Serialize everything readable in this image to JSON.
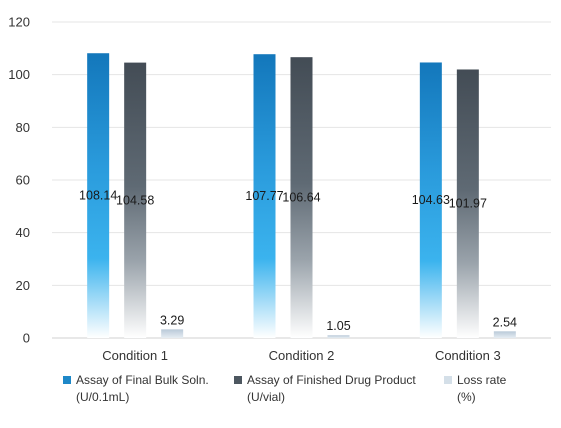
{
  "chart_data": {
    "type": "bar",
    "categories": [
      "Condition 1",
      "Condition 2",
      "Condition 3"
    ],
    "series": [
      {
        "name": "Assay of Final Bulk Soln. (U/0.1mL)",
        "legend_lines": [
          "Assay of Final Bulk Soln.",
          "(U/0.1mL)"
        ],
        "values": [
          108.14,
          107.77,
          104.63
        ],
        "labels": [
          "108.14",
          "107.77",
          "104.63"
        ],
        "color": "#1e88c8"
      },
      {
        "name": "Assay of Finished Drug Product (U/vial)",
        "legend_lines": [
          "Assay of Finished Drug Product",
          "(U/vial)"
        ],
        "values": [
          104.58,
          106.64,
          101.97
        ],
        "labels": [
          "104.58",
          "106.64",
          "101.97"
        ],
        "color": "#4d5760"
      },
      {
        "name": "Loss rate (%)",
        "legend_lines": [
          "Loss rate",
          "(%)"
        ],
        "values": [
          3.29,
          1.05,
          2.54
        ],
        "labels": [
          "3.29",
          "1.05",
          "2.54"
        ],
        "color": "#c9d6e2"
      }
    ],
    "ylim": [
      0,
      120
    ],
    "yticks": [
      0,
      20,
      40,
      60,
      80,
      100,
      120
    ],
    "grid": true,
    "legend_position": "bottom"
  }
}
